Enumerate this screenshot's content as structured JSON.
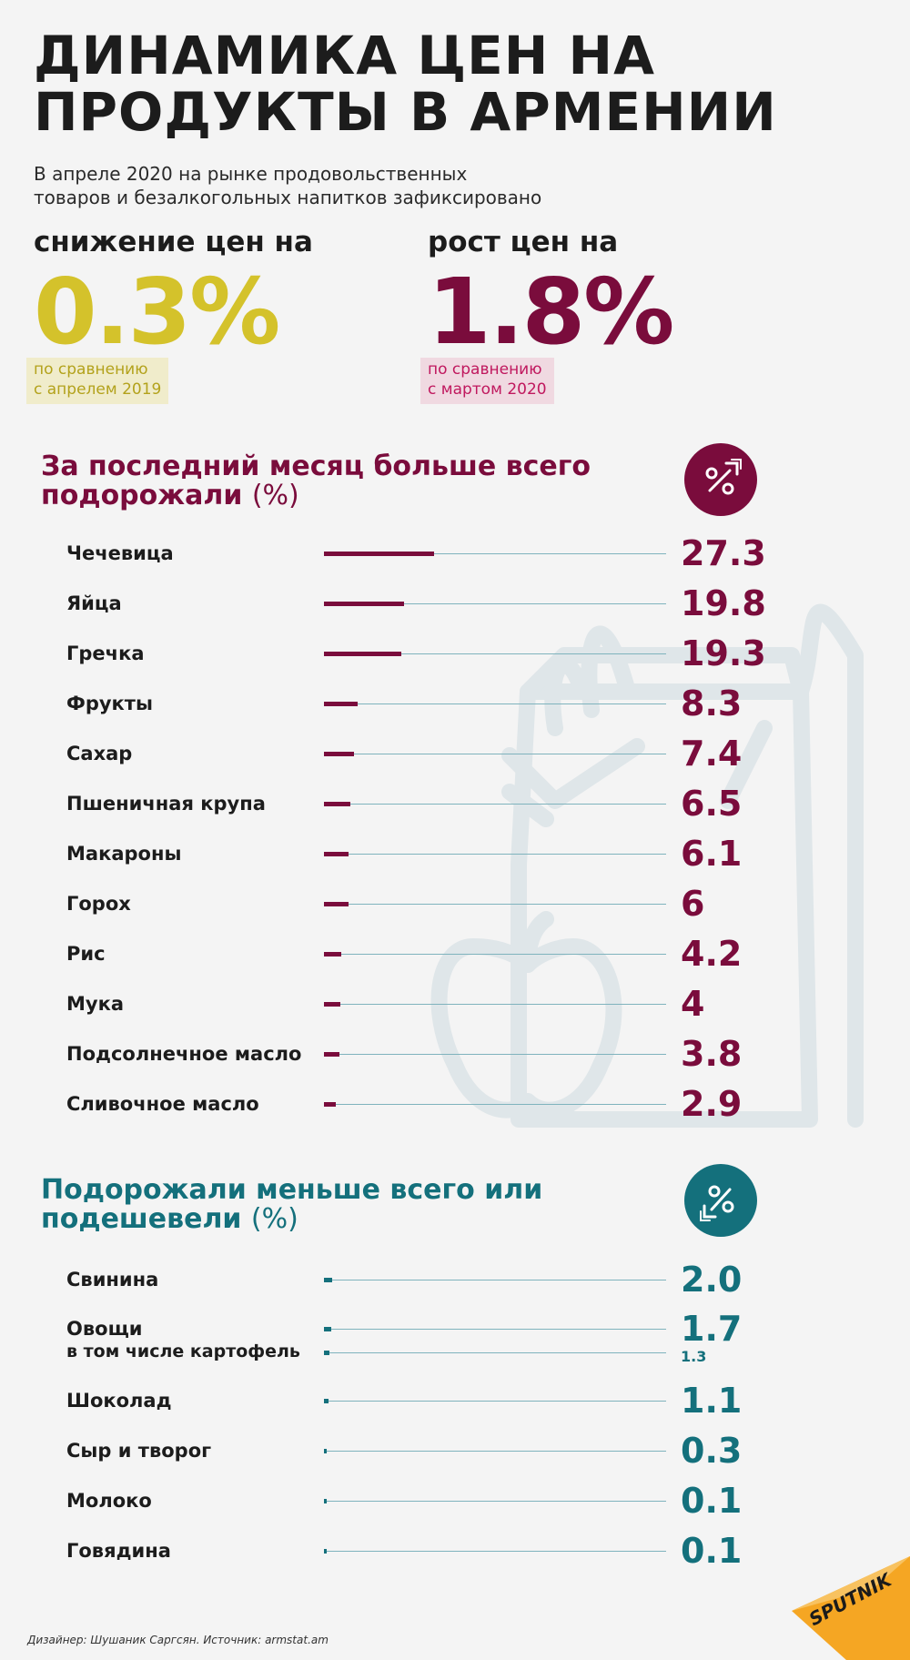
{
  "header": {
    "title_line1": "ДИНАМИКА ЦЕН НА",
    "title_line2": "ПРОДУКТЫ В АРМЕНИИ",
    "subtitle_line1": "В апреле 2020 на рынке продовольственных",
    "subtitle_line2": "товаров и безалкогольных напитков зафиксировано"
  },
  "kpis": [
    {
      "label": "снижение цен на",
      "value": "0.3%",
      "note_line1": "по сравнению",
      "note_line2": "с апрелем 2019",
      "color": "#d4c22b",
      "note_bg": "#f0eccb",
      "note_color": "#b3a21c"
    },
    {
      "label": "рост цен на",
      "value": "1.8%",
      "note_line1": "по сравнению",
      "note_line2": "с мартом 2020",
      "color": "#7a0c3c",
      "note_bg": "#f0d9e1",
      "note_color": "#c0185e"
    }
  ],
  "sections": {
    "up": {
      "title_line1": "За последний месяц больше всего",
      "title_line2": "подорожали",
      "unit": "(%)",
      "color": "#7a0c3c",
      "icon": "percent-up-icon"
    },
    "down": {
      "title_line1": "Подорожали меньше всего или",
      "title_line2": "подешевели",
      "unit": "(%)",
      "color": "#14707c",
      "icon": "percent-down-icon"
    }
  },
  "chart_data": [
    {
      "type": "bar",
      "orientation": "horizontal",
      "title": "За последний месяц больше всего подорожали (%)",
      "categories": [
        "Чечевица",
        "Яйца",
        "Гречка",
        "Фрукты",
        "Сахар",
        "Пшеничная крупа",
        "Макароны",
        "Горох",
        "Рис",
        "Мука",
        "Подсолнечное масло",
        "Сливочное масло"
      ],
      "values": [
        27.3,
        19.8,
        19.3,
        8.3,
        7.4,
        6.5,
        6.1,
        6,
        4.2,
        4,
        3.8,
        2.9
      ],
      "value_labels": [
        "27.3",
        "19.8",
        "19.3",
        "8.3",
        "7.4",
        "6.5",
        "6.1",
        "6",
        "4.2",
        "4",
        "3.8",
        "2.9"
      ],
      "xlim": [
        0,
        85
      ],
      "color": "#7a0c3c"
    },
    {
      "type": "bar",
      "orientation": "horizontal",
      "title": "Подорожали меньше всего или подешевели (%)",
      "categories": [
        "Свинина",
        "Овощи",
        "в том числе картофель",
        "Шоколад",
        "Сыр и творог",
        "Молоко",
        "Говядина"
      ],
      "values": [
        2.0,
        1.7,
        1.3,
        1.1,
        0.3,
        0.1,
        0.1
      ],
      "value_labels": [
        "2.0",
        "1.7",
        "1.3",
        "1.1",
        "0.3",
        "0.1",
        "0.1"
      ],
      "xlim": [
        0,
        85
      ],
      "color": "#14707c"
    }
  ],
  "footer": {
    "credit": "Дизайнер: Шушаник Саргсян. Источник: armstat.am",
    "logo": "SPUTNIK"
  }
}
